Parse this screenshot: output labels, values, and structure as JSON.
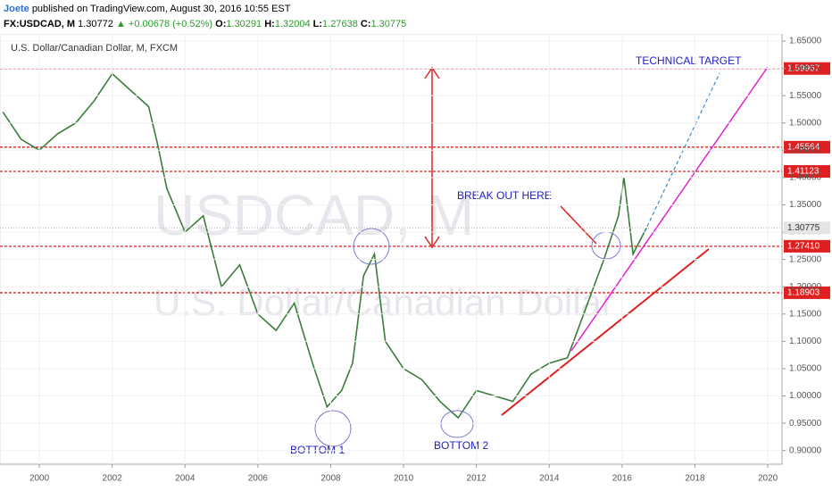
{
  "header": {
    "author": "Joete",
    "published": "published on TradingView.com, August 30, 2016 10:55 EST",
    "symbol": "FX:USDCAD, M",
    "price": "1.30772",
    "change": "▲ +0.00678 (+0.52%)",
    "ohlc": [
      {
        "key": "O:",
        "value": "1.30291"
      },
      {
        "key": "H:",
        "value": "1.32004"
      },
      {
        "key": "L:",
        "value": "1.27638"
      },
      {
        "key": "C:",
        "value": "1.30775"
      }
    ]
  },
  "chart_data": {
    "type": "line",
    "title": "U.S. Dollar/Canadian Dollar, M, FXCM",
    "watermark": [
      "USDCAD, M",
      "U.S. Dollar/Canadian Dollar"
    ],
    "x": [
      1999.0,
      1999.5,
      2000.0,
      2000.5,
      2001.0,
      2001.5,
      2002.0,
      2002.5,
      2003.0,
      2003.25,
      2003.5,
      2004.0,
      2004.5,
      2005.0,
      2005.5,
      2006.0,
      2006.5,
      2007.0,
      2007.5,
      2007.9,
      2008.3,
      2008.6,
      2008.9,
      2009.2,
      2009.5,
      2010.0,
      2010.5,
      2011.0,
      2011.5,
      2012.0,
      2012.5,
      2013.0,
      2013.5,
      2014.0,
      2014.5,
      2015.0,
      2015.5,
      2015.9,
      2016.05,
      2016.3,
      2016.67
    ],
    "series": [
      {
        "name": "USDCAD",
        "color": "#3a7d3a",
        "values": [
          1.52,
          1.47,
          1.45,
          1.48,
          1.5,
          1.54,
          1.59,
          1.56,
          1.53,
          1.46,
          1.38,
          1.3,
          1.33,
          1.2,
          1.24,
          1.15,
          1.12,
          1.17,
          1.06,
          0.98,
          1.01,
          1.06,
          1.22,
          1.26,
          1.1,
          1.05,
          1.03,
          0.99,
          0.96,
          1.01,
          1.0,
          0.99,
          1.04,
          1.06,
          1.07,
          1.16,
          1.25,
          1.33,
          1.4,
          1.26,
          1.30775
        ]
      }
    ],
    "xlim": [
      1998.92,
      2020.39
    ],
    "xticks": [
      2000,
      2002,
      2004,
      2006,
      2008,
      2010,
      2012,
      2014,
      2016,
      2018,
      2020
    ],
    "ylim": [
      0.875,
      1.663
    ],
    "yticks": [
      {
        "value": 0.9,
        "label": "0.90000"
      },
      {
        "value": 0.95,
        "label": "0.95000"
      },
      {
        "value": 1.0,
        "label": "1.00000"
      },
      {
        "value": 1.05,
        "label": "1.05000"
      },
      {
        "value": 1.1,
        "label": "1.10000"
      },
      {
        "value": 1.15,
        "label": "1.15000"
      },
      {
        "value": 1.2,
        "label": "1.20000"
      },
      {
        "value": 1.25,
        "label": "1.25000"
      },
      {
        "value": 1.3,
        "label": "1.30000"
      },
      {
        "value": 1.35,
        "label": "1.35000"
      },
      {
        "value": 1.4,
        "label": "1.40000"
      },
      {
        "value": 1.45,
        "label": "1.45000"
      },
      {
        "value": 1.5,
        "label": "1.50000"
      },
      {
        "value": 1.55,
        "label": "1.55000"
      },
      {
        "value": 1.6,
        "label": "1.60000"
      },
      {
        "value": 1.65,
        "label": "1.65000"
      }
    ],
    "levels": [
      1.59967,
      1.45564,
      1.41123,
      {
        "value": 1.2741,
        "label": "1.27410"
      },
      1.18903
    ],
    "last_price": 1.30775,
    "annotations": [
      "TECHNICAL TARGET",
      "BREAK OUT HERE",
      "BOTTOM 1",
      "BOTTOM 2"
    ]
  }
}
